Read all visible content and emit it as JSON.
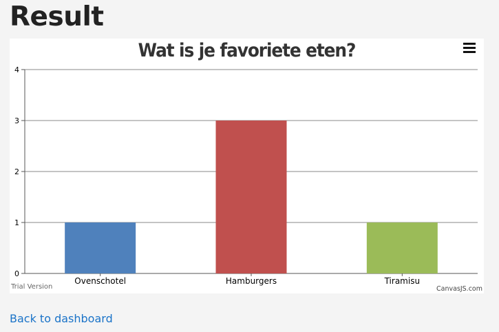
{
  "page": {
    "title": "Result"
  },
  "chart": {
    "menu_icon": "hamburger-menu-icon"
  },
  "watermark": {
    "left": "Trial Version",
    "right": "CanvasJS.com"
  },
  "footer": {
    "back_link": "Back to dashboard"
  },
  "colors": {
    "link": "#1a73c8",
    "bar_1": "#4f81bc",
    "bar_2": "#c0504e",
    "bar_3": "#9bbb58"
  },
  "chart_data": {
    "type": "bar",
    "title": "Wat is je favoriete eten?",
    "categories": [
      "Ovenschotel",
      "Hamburgers",
      "Tiramisu"
    ],
    "values": [
      1,
      3,
      1
    ],
    "colors": [
      "#4f81bc",
      "#c0504e",
      "#9bbb58"
    ],
    "ylim": [
      0,
      4
    ],
    "yticks": [
      0,
      1,
      2,
      3,
      4
    ],
    "xlabel": "",
    "ylabel": "",
    "grid": true
  }
}
